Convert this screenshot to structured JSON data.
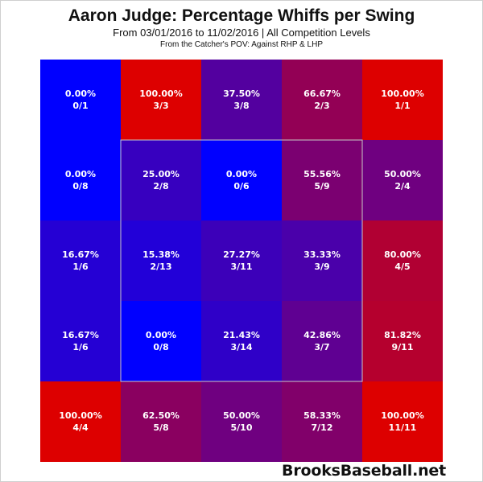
{
  "chart_data": {
    "type": "heatmap",
    "title": "Aaron Judge: Percentage Whiffs per Swing",
    "subtitle": "From 03/01/2016 to 11/02/2016 | All Competition Levels",
    "subtitle2": "From the Catcher's POV:  Against RHP & LHP",
    "rows": 5,
    "cols": 5,
    "strike_zone": {
      "row_start": 1,
      "row_end": 3,
      "col_start": 1,
      "col_end": 3
    },
    "color_low": "#0000ff",
    "color_high": "#dd0000",
    "cells": [
      [
        {
          "pct": "0.00%",
          "ratio": "0/1",
          "value": 0.0
        },
        {
          "pct": "100.00%",
          "ratio": "3/3",
          "value": 100.0
        },
        {
          "pct": "37.50%",
          "ratio": "3/8",
          "value": 37.5
        },
        {
          "pct": "66.67%",
          "ratio": "2/3",
          "value": 66.67
        },
        {
          "pct": "100.00%",
          "ratio": "1/1",
          "value": 100.0
        }
      ],
      [
        {
          "pct": "0.00%",
          "ratio": "0/8",
          "value": 0.0
        },
        {
          "pct": "25.00%",
          "ratio": "2/8",
          "value": 25.0
        },
        {
          "pct": "0.00%",
          "ratio": "0/6",
          "value": 0.0
        },
        {
          "pct": "55.56%",
          "ratio": "5/9",
          "value": 55.56
        },
        {
          "pct": "50.00%",
          "ratio": "2/4",
          "value": 50.0
        }
      ],
      [
        {
          "pct": "16.67%",
          "ratio": "1/6",
          "value": 16.67
        },
        {
          "pct": "15.38%",
          "ratio": "2/13",
          "value": 15.38
        },
        {
          "pct": "27.27%",
          "ratio": "3/11",
          "value": 27.27
        },
        {
          "pct": "33.33%",
          "ratio": "3/9",
          "value": 33.33
        },
        {
          "pct": "80.00%",
          "ratio": "4/5",
          "value": 80.0
        }
      ],
      [
        {
          "pct": "16.67%",
          "ratio": "1/6",
          "value": 16.67
        },
        {
          "pct": "0.00%",
          "ratio": "0/8",
          "value": 0.0
        },
        {
          "pct": "21.43%",
          "ratio": "3/14",
          "value": 21.43
        },
        {
          "pct": "42.86%",
          "ratio": "3/7",
          "value": 42.86
        },
        {
          "pct": "81.82%",
          "ratio": "9/11",
          "value": 81.82
        }
      ],
      [
        {
          "pct": "100.00%",
          "ratio": "4/4",
          "value": 100.0
        },
        {
          "pct": "62.50%",
          "ratio": "5/8",
          "value": 62.5
        },
        {
          "pct": "50.00%",
          "ratio": "5/10",
          "value": 50.0
        },
        {
          "pct": "58.33%",
          "ratio": "7/12",
          "value": 58.33
        },
        {
          "pct": "100.00%",
          "ratio": "11/11",
          "value": 100.0
        }
      ]
    ]
  },
  "watermark": "BrooksBaseball.net"
}
